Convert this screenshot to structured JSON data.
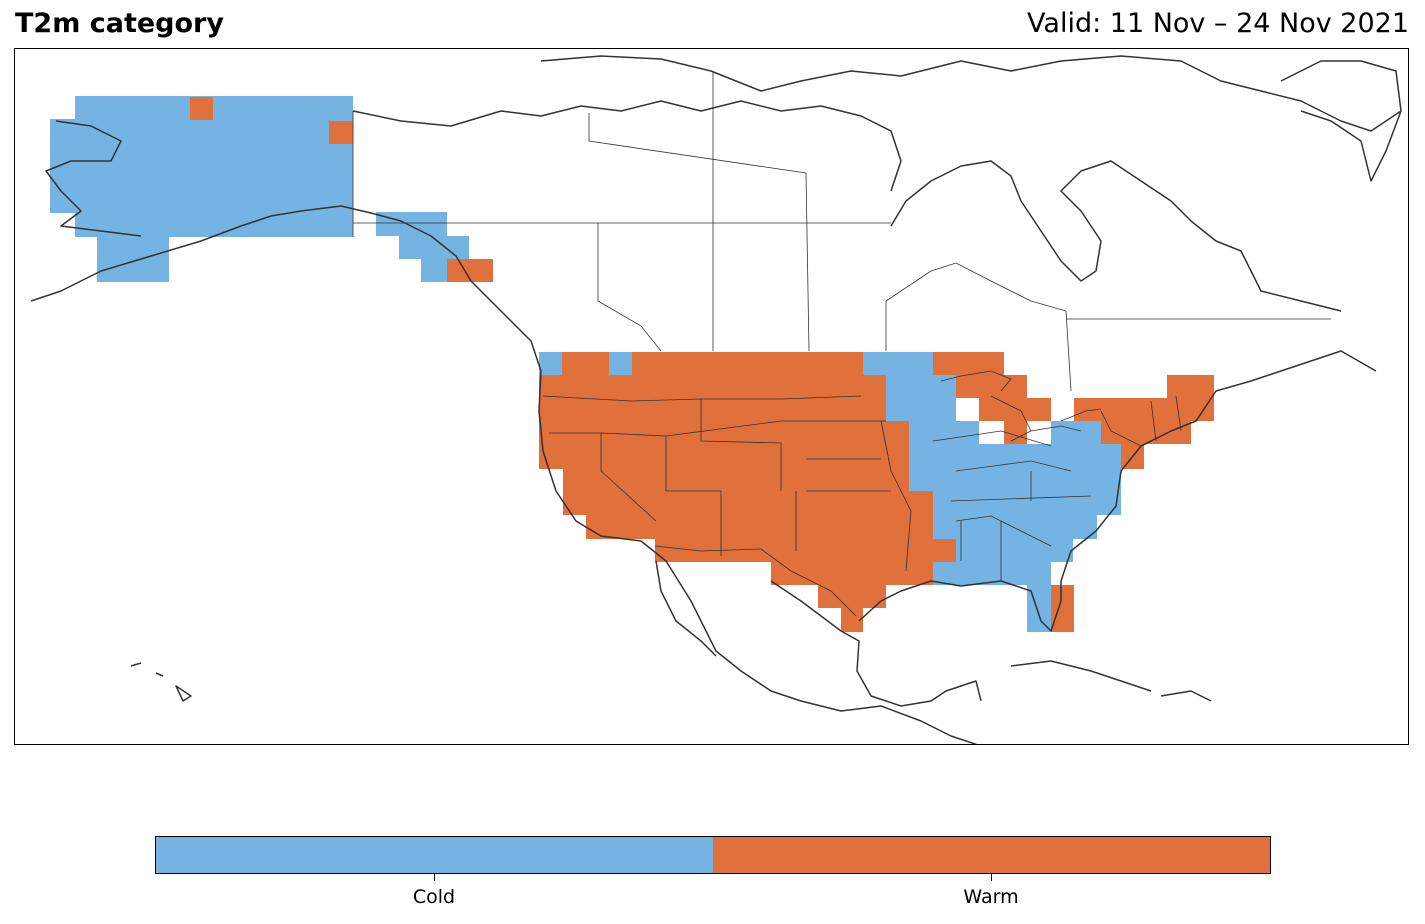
{
  "header": {
    "title": "T2m category",
    "valid": "Valid: 11 Nov – 24 Nov 2021"
  },
  "legend": {
    "categories": [
      {
        "label": "Cold",
        "color": "#74b3e2"
      },
      {
        "label": "Warm",
        "color": "#e0703c"
      }
    ]
  },
  "map": {
    "region": "North America",
    "outline_color": "#333333",
    "background": "#ffffff"
  }
}
